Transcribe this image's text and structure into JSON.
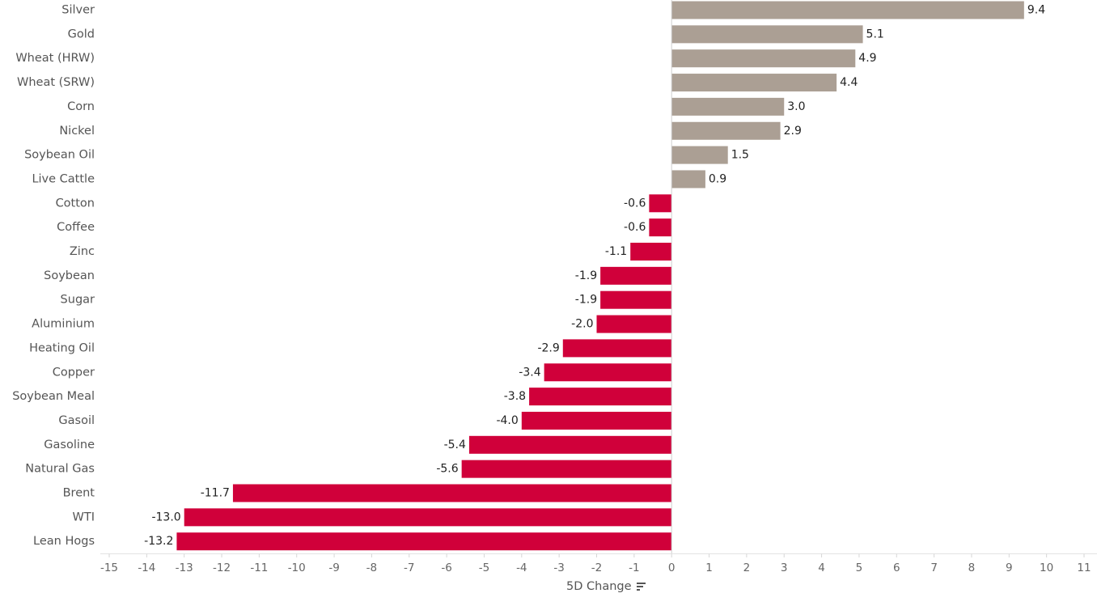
{
  "chart_data": {
    "type": "bar",
    "orientation": "horizontal",
    "xlabel": "5D Change",
    "xlim": [
      -15,
      11
    ],
    "xticks": [
      -15,
      -14,
      -13,
      -12,
      -11,
      -10,
      -9,
      -8,
      -7,
      -6,
      -5,
      -4,
      -3,
      -2,
      -1,
      0,
      1,
      2,
      3,
      4,
      5,
      6,
      7,
      8,
      9,
      10,
      11
    ],
    "categories": [
      "Silver",
      "Gold",
      "Wheat (HRW)",
      "Wheat (SRW)",
      "Corn",
      "Nickel",
      "Soybean Oil",
      "Live Cattle",
      "Cotton",
      "Coffee",
      "Zinc",
      "Soybean",
      "Sugar",
      "Aluminium",
      "Heating Oil",
      "Copper",
      "Soybean Meal",
      "Gasoil",
      "Gasoline",
      "Natural Gas",
      "Brent",
      "WTI",
      "Lean Hogs"
    ],
    "values": [
      9.4,
      5.1,
      4.9,
      4.4,
      3.0,
      2.9,
      1.5,
      0.9,
      -0.6,
      -0.6,
      -1.1,
      -1.9,
      -1.9,
      -2.0,
      -2.9,
      -3.4,
      -3.8,
      -4.0,
      -5.4,
      -5.6,
      -11.7,
      -13.0,
      -13.2
    ],
    "labels": [
      "9.4",
      "5.1",
      "4.9",
      "4.4",
      "3.0",
      "2.9",
      "1.5",
      "0.9",
      "-0.6",
      "-0.6",
      "-1.1",
      "-1.9",
      "-1.9",
      "-2.0",
      "-2.9",
      "-3.4",
      "-3.8",
      "-4.0",
      "-5.4",
      "-5.6",
      "-11.7",
      "-13.0",
      "-13.2"
    ],
    "colors": {
      "positive": "#ab9f94",
      "negative": "#d0003a"
    },
    "sort_icon": "sort-descending-icon"
  }
}
